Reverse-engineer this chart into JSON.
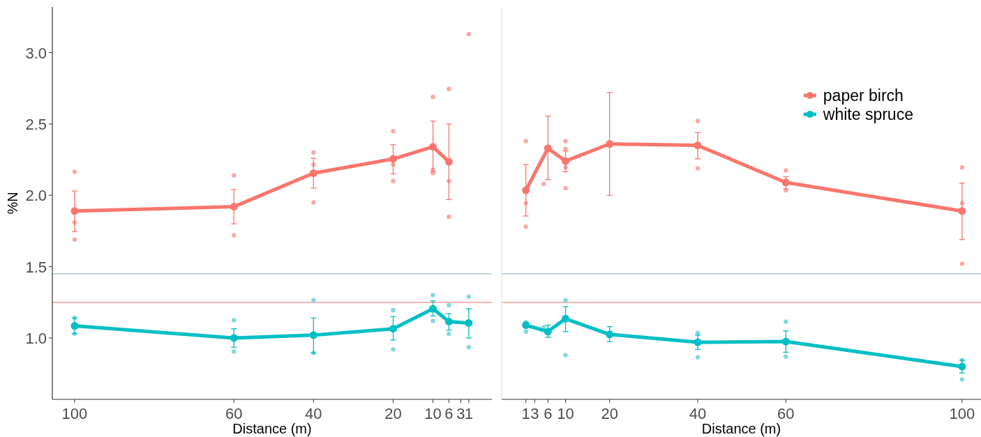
{
  "chart_data": [
    {
      "type": "line",
      "xlabel": "Distance (m)",
      "ylabel": "%N",
      "xlim": [
        105.6,
        -4.8
      ],
      "ylim": [
        0.57,
        3.32
      ],
      "xticks": [
        100,
        60,
        40,
        20,
        10,
        6,
        3,
        1
      ],
      "yticks": [
        {
          "value": 1.0,
          "label": "1.0"
        },
        {
          "value": 1.5,
          "label": "1.5"
        },
        {
          "value": 2.0,
          "label": "2.0"
        },
        {
          "value": 2.5,
          "label": "2.5"
        },
        {
          "value": 3.0,
          "label": "3.0"
        }
      ],
      "marker": "circle",
      "ref_lines": [
        {
          "axis": "y",
          "value": 1.45,
          "color": "#9fb8d6"
        },
        {
          "axis": "y",
          "value": 1.25,
          "color": "#f08a84"
        }
      ],
      "series": [
        {
          "type": "scatter",
          "color": "#f6aca6",
          "x": [
            100,
            100,
            100,
            60,
            60,
            40,
            40,
            40,
            20,
            20,
            20,
            10,
            10,
            10,
            6,
            6,
            6,
            1
          ],
          "values": [
            2.165,
            1.81,
            1.69,
            2.14,
            1.72,
            2.3,
            2.215,
            1.95,
            2.45,
            2.215,
            2.1,
            2.69,
            2.18,
            2.155,
            2.745,
            2.1,
            1.85,
            3.13
          ]
        },
        {
          "type": "scatter",
          "color": "#80dadc",
          "x": [
            100,
            100,
            60,
            60,
            40,
            40,
            20,
            20,
            10,
            10,
            6,
            6,
            1,
            1
          ],
          "values": [
            1.14,
            1.03,
            1.125,
            0.905,
            1.265,
            0.895,
            1.195,
            0.92,
            1.3,
            1.12,
            1.23,
            1.03,
            1.29,
            0.935
          ]
        },
        {
          "type": "line",
          "color": "#f8766d",
          "x": [
            100,
            60,
            40,
            20,
            10,
            6
          ],
          "values": [
            1.89,
            1.92,
            2.155,
            2.255,
            2.34,
            2.235
          ],
          "errors": [
            [
              1.745,
              2.03
            ],
            [
              1.8,
              2.04
            ],
            [
              2.05,
              2.26
            ],
            [
              2.15,
              2.355
            ],
            [
              2.165,
              2.52
            ],
            [
              1.97,
              2.5
            ]
          ]
        },
        {
          "type": "line",
          "color": "#00bfc4",
          "x": [
            100,
            60,
            40,
            20,
            10,
            6,
            1
          ],
          "values": [
            1.085,
            1.0,
            1.02,
            1.065,
            1.205,
            1.115,
            1.105
          ],
          "errors": [
            [
              1.03,
              1.14
            ],
            [
              0.935,
              1.065
            ],
            [
              0.895,
              1.14
            ],
            [
              0.985,
              1.15
            ],
            [
              1.155,
              1.26
            ],
            [
              1.055,
              1.17
            ],
            [
              1.0,
              1.205
            ]
          ]
        }
      ]
    },
    {
      "type": "line",
      "xlabel": "Distance (m)",
      "xlim": [
        -4.5,
        104.3
      ],
      "ylim": [
        0.57,
        3.32
      ],
      "xticks": [
        1,
        3,
        6,
        10,
        20,
        40,
        60,
        100
      ],
      "tick_labels": "x",
      "marker": "circle",
      "legend": "top right",
      "ref_lines": [
        {
          "axis": "y",
          "value": 1.45,
          "color": "#9fb8d6"
        },
        {
          "axis": "y",
          "value": 1.25,
          "color": "#f08a84"
        }
      ],
      "series": [
        {
          "type": "scatter",
          "color": "#f6aca6",
          "x": [
            1,
            1,
            1,
            5,
            10,
            10,
            10,
            10,
            40,
            40,
            60,
            60,
            100,
            100,
            100
          ],
          "values": [
            2.38,
            1.945,
            1.78,
            2.08,
            2.38,
            2.325,
            2.195,
            2.05,
            2.52,
            2.19,
            2.175,
            2.035,
            2.195,
            1.945,
            1.52
          ]
        },
        {
          "type": "scatter",
          "color": "#80dadc",
          "x": [
            1,
            1,
            5,
            10,
            10,
            40,
            40,
            60,
            60,
            100,
            100
          ],
          "values": [
            1.11,
            1.045,
            1.075,
            1.265,
            0.88,
            1.035,
            0.865,
            1.115,
            0.87,
            0.845,
            0.71
          ]
        },
        {
          "type": "line",
          "name": "paper birch",
          "color": "#f8766d",
          "x": [
            1,
            6,
            10,
            20,
            40,
            60,
            100
          ],
          "values": [
            2.035,
            2.33,
            2.24,
            2.36,
            2.35,
            2.09,
            1.89
          ],
          "errors": [
            [
              1.855,
              2.215
            ],
            [
              2.11,
              2.555
            ],
            [
              2.165,
              2.31
            ],
            [
              2.0,
              2.72
            ],
            [
              2.255,
              2.44
            ],
            [
              2.045,
              2.13
            ],
            [
              1.69,
              2.085
            ]
          ]
        },
        {
          "type": "line",
          "name": "white spruce",
          "color": "#00bfc4",
          "x": [
            1,
            6,
            10,
            20,
            40,
            60,
            100
          ],
          "values": [
            1.09,
            1.045,
            1.135,
            1.025,
            0.97,
            0.975,
            0.8
          ],
          "errors": [
            [
              1.075,
              1.11
            ],
            [
              1.005,
              1.09
            ],
            [
              1.045,
              1.22
            ],
            [
              0.975,
              1.08
            ],
            [
              0.92,
              1.02
            ],
            [
              0.9,
              1.05
            ],
            [
              0.755,
              0.845
            ]
          ]
        }
      ]
    }
  ]
}
